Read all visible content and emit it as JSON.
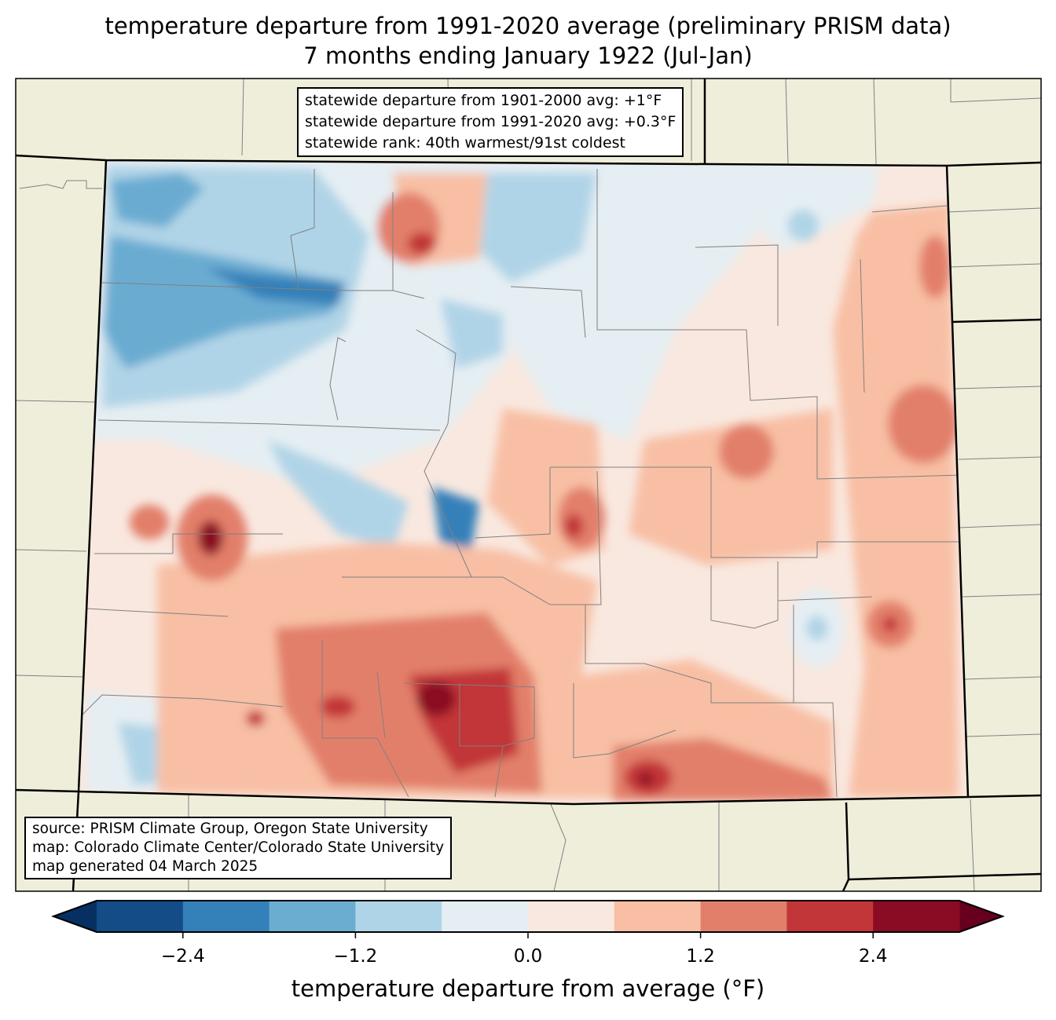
{
  "title": {
    "line1": "temperature departure from 1991-2020 average (preliminary PRISM data)",
    "line2": "7 months ending January 1922 (Jul-Jan)"
  },
  "stats_box": {
    "line1": "statewide departure from 1901-2000 avg: +1°F",
    "line2": "statewide departure from 1991-2020 avg: +0.3°F",
    "line3": "statewide rank: 40th warmest/91st coldest"
  },
  "source_box": {
    "line1": "source: PRISM Climate Group, Oregon State University",
    "line2": "map: Colorado Climate Center/Colorado State University",
    "line3": "map generated 04 March 2025"
  },
  "colorbar": {
    "label": "temperature departure from average (°F)",
    "ticks": [
      "−2.4",
      "−1.2",
      "0.0",
      "1.2",
      "2.4"
    ],
    "levels": [
      -3.0,
      -2.4,
      -1.8,
      -1.2,
      -0.6,
      0.0,
      0.6,
      1.2,
      1.8,
      2.4,
      3.0
    ],
    "colors": [
      "#134c87",
      "#3480b9",
      "#6bacd1",
      "#b0d4e7",
      "#e5eef3",
      "#f9e8df",
      "#f8bfa4",
      "#e27f6a",
      "#c23639",
      "#8a0b24"
    ],
    "under_color": "#053061",
    "over_color": "#67001f"
  },
  "colors": {
    "land": "#efeedb",
    "county_line": "#808080"
  }
}
